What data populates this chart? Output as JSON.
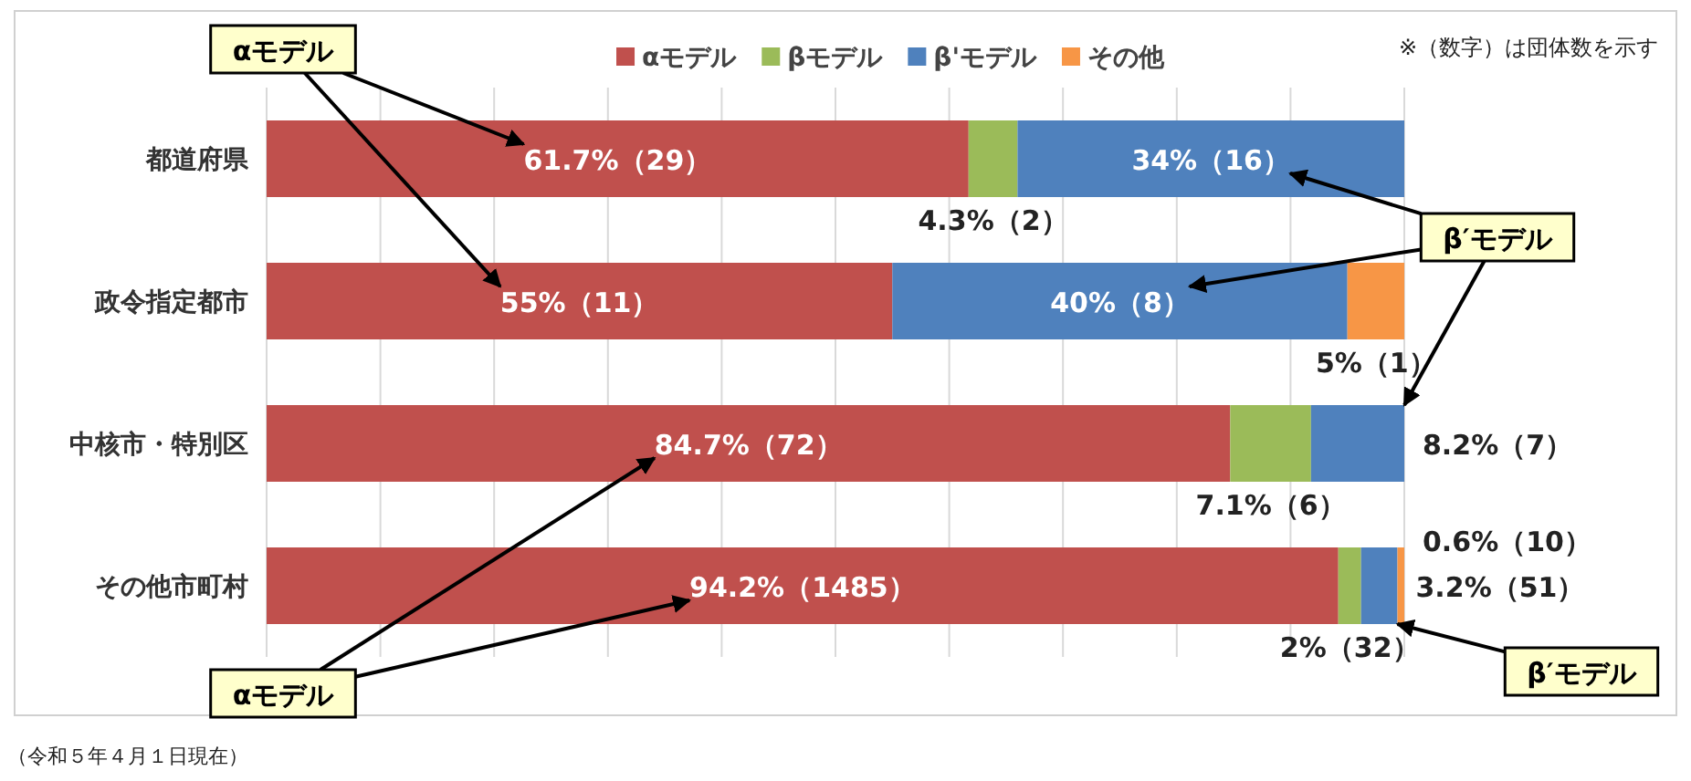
{
  "chart_data": {
    "type": "bar",
    "orientation": "horizontal",
    "stacked": true,
    "categories": [
      "都道府県",
      "政令指定都市",
      "中核市・特別区",
      "その他市町村"
    ],
    "xlim": [
      0,
      100
    ],
    "xticks": [
      {
        "value": 0,
        "label": null
      },
      {
        "value": 10,
        "label": null
      },
      {
        "value": 20,
        "label": null
      },
      {
        "value": 30,
        "label": null
      },
      {
        "value": 40,
        "label": null
      },
      {
        "value": 50,
        "label": null
      },
      {
        "value": 60,
        "label": null
      },
      {
        "value": 70,
        "label": null
      },
      {
        "value": 80,
        "label": null
      },
      {
        "value": 90,
        "label": null
      },
      {
        "value": 100,
        "label": null
      }
    ],
    "grid": "x",
    "legend": "top",
    "tick_labels": "y",
    "series": [
      {
        "name": "αモデル",
        "color": "#c0504d",
        "values": [
          61.7,
          55,
          84.7,
          94.2
        ],
        "value_labels": [
          "61.7%（29）",
          "55%（11）",
          "84.7%（72）",
          "94.2%（1485）"
        ]
      },
      {
        "name": "βモデル",
        "color": "#9bbb59",
        "values": [
          4.3,
          null,
          7.1,
          2
        ],
        "value_labels": [
          "4.3%（2）",
          null,
          "7.1%（6）",
          "2%（32）"
        ]
      },
      {
        "name": "β'モデル",
        "color": "#4f81bd",
        "values": [
          34,
          40,
          8.2,
          3.2
        ],
        "value_labels": [
          "34%（16）",
          "40%（8）",
          "8.2%（7）",
          "3.2%（51）"
        ]
      },
      {
        "name": "その他",
        "color": "#f79646",
        "values": [
          null,
          5,
          null,
          0.6
        ],
        "value_labels": [
          null,
          "5%（1）",
          null,
          "0.6%（10）"
        ]
      }
    ],
    "annotations": [
      "※（数字）は団体数を示す",
      "（令和５年４月１日現在）",
      "αモデル",
      "β′モデル",
      "αモデル",
      "β′モデル"
    ]
  }
}
